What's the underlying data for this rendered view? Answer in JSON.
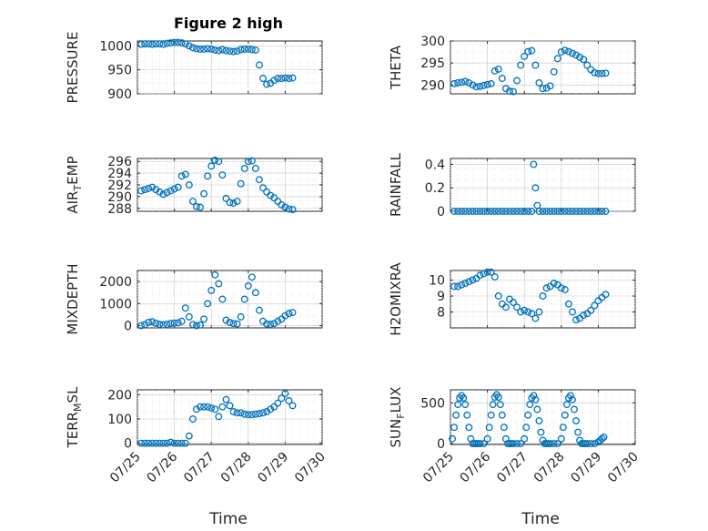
{
  "title": "Figure 2 high",
  "colors": {
    "marker": "#0072BD",
    "axis": "#262626"
  },
  "chart_data": [
    {
      "type": "scatter",
      "ylabel": "PRESSURE",
      "ylim": [
        900,
        1010
      ],
      "yticks": [
        900,
        950,
        1000
      ],
      "xlim": [
        0,
        5
      ],
      "grid": true,
      "x": [
        0.1,
        0.2,
        0.3,
        0.4,
        0.5,
        0.6,
        0.7,
        0.8,
        0.9,
        1.0,
        1.1,
        1.2,
        1.3,
        1.4,
        1.5,
        1.6,
        1.7,
        1.8,
        1.9,
        2.0,
        2.1,
        2.2,
        2.3,
        2.4,
        2.5,
        2.6,
        2.7,
        2.8,
        2.9,
        3.0,
        3.1,
        3.2,
        3.3,
        3.4,
        3.5,
        3.6,
        3.7,
        3.8,
        3.9,
        4.0,
        4.1,
        4.2
      ],
      "y": [
        1003,
        1004,
        1004,
        1003,
        1004,
        1004,
        1003,
        1005,
        1006,
        1007,
        1007,
        1006,
        1004,
        1000,
        996,
        994,
        993,
        993,
        994,
        993,
        991,
        990,
        992,
        990,
        989,
        988,
        989,
        992,
        993,
        993,
        992,
        991,
        960,
        932,
        920,
        922,
        928,
        932,
        932,
        933,
        932,
        933
      ]
    },
    {
      "type": "scatter",
      "ylabel": "THETA",
      "ylim": [
        288,
        300
      ],
      "yticks": [
        290,
        295,
        300
      ],
      "xlim": [
        0,
        5
      ],
      "grid": true,
      "x": [
        0.1,
        0.2,
        0.3,
        0.4,
        0.5,
        0.6,
        0.7,
        0.8,
        0.9,
        1.0,
        1.1,
        1.2,
        1.3,
        1.4,
        1.5,
        1.6,
        1.7,
        1.8,
        1.9,
        2.0,
        2.1,
        2.2,
        2.3,
        2.4,
        2.5,
        2.6,
        2.7,
        2.8,
        2.9,
        3.0,
        3.1,
        3.2,
        3.3,
        3.4,
        3.5,
        3.6,
        3.7,
        3.8,
        3.9,
        4.0,
        4.1,
        4.2
      ],
      "y": [
        290.3,
        290.5,
        290.6,
        290.8,
        290.5,
        290,
        289.6,
        289.7,
        289.9,
        290.1,
        290.3,
        293.2,
        293.6,
        291.5,
        289.2,
        288.6,
        288.5,
        291,
        294.5,
        296.5,
        297.6,
        297.8,
        294.5,
        290.5,
        289.2,
        289.3,
        289.8,
        293,
        296,
        297.5,
        297.9,
        297.6,
        297.2,
        296.8,
        296.3,
        295.8,
        294.5,
        293.5,
        292.8,
        292.6,
        292.6,
        292.7
      ]
    },
    {
      "type": "scatter",
      "ylabel": "AIR_TEMP",
      "ylim": [
        287.5,
        296.5
      ],
      "yticks": [
        288,
        290,
        292,
        294,
        296
      ],
      "xlim": [
        0,
        5
      ],
      "grid": true,
      "x": [
        0.1,
        0.2,
        0.3,
        0.4,
        0.5,
        0.6,
        0.7,
        0.8,
        0.9,
        1.0,
        1.1,
        1.2,
        1.3,
        1.4,
        1.5,
        1.6,
        1.7,
        1.8,
        1.9,
        2.0,
        2.1,
        2.2,
        2.3,
        2.4,
        2.5,
        2.6,
        2.7,
        2.8,
        2.9,
        3.0,
        3.1,
        3.2,
        3.3,
        3.4,
        3.5,
        3.6,
        3.7,
        3.8,
        3.9,
        4.0,
        4.1,
        4.2
      ],
      "y": [
        291,
        291.2,
        291.4,
        291.6,
        291.2,
        290.8,
        290.4,
        290.7,
        291,
        291.3,
        291.6,
        293.5,
        293.8,
        292,
        289.2,
        288.3,
        288.2,
        290.5,
        293.5,
        295.2,
        296.2,
        296,
        293.7,
        289.7,
        289,
        288.9,
        289.2,
        292.2,
        294.8,
        296,
        296.1,
        294.8,
        292.9,
        291.5,
        290.8,
        290.2,
        289.8,
        289.2,
        288.6,
        288.2,
        287.9,
        287.8
      ]
    },
    {
      "type": "scatter",
      "ylabel": "RAINFALL",
      "ylim": [
        0,
        0.45
      ],
      "yticks": [
        0,
        0.2,
        0.4
      ],
      "xlim": [
        0,
        5
      ],
      "grid": true,
      "x": [
        0.1,
        0.2,
        0.3,
        0.4,
        0.5,
        0.6,
        0.7,
        0.8,
        0.9,
        1.0,
        1.1,
        1.2,
        1.3,
        1.4,
        1.5,
        1.6,
        1.7,
        1.8,
        1.9,
        2.0,
        2.1,
        2.2,
        2.25,
        2.3,
        2.35,
        2.4,
        2.5,
        2.6,
        2.7,
        2.8,
        2.9,
        3.0,
        3.1,
        3.2,
        3.3,
        3.4,
        3.5,
        3.6,
        3.7,
        3.8,
        3.9,
        4.0,
        4.1,
        4.2
      ],
      "y": [
        0,
        0,
        0,
        0,
        0,
        0,
        0,
        0,
        0,
        0,
        0,
        0,
        0,
        0,
        0,
        0,
        0,
        0,
        0,
        0,
        0,
        0,
        0.4,
        0.2,
        0.05,
        0,
        0,
        0,
        0,
        0,
        0,
        0,
        0,
        0,
        0,
        0,
        0,
        0,
        0,
        0,
        0,
        0,
        0,
        0
      ]
    },
    {
      "type": "scatter",
      "ylabel": "MIXDEPTH",
      "ylim": [
        -100,
        2500
      ],
      "yticks": [
        0,
        1000,
        2000
      ],
      "xlim": [
        0,
        5
      ],
      "grid": true,
      "x": [
        0.1,
        0.2,
        0.3,
        0.4,
        0.5,
        0.6,
        0.7,
        0.8,
        0.9,
        1.0,
        1.1,
        1.2,
        1.3,
        1.4,
        1.5,
        1.6,
        1.7,
        1.8,
        1.9,
        2.0,
        2.1,
        2.2,
        2.3,
        2.4,
        2.5,
        2.6,
        2.7,
        2.8,
        2.9,
        3.0,
        3.1,
        3.2,
        3.3,
        3.4,
        3.5,
        3.6,
        3.7,
        3.8,
        3.9,
        4.0,
        4.1,
        4.2
      ],
      "y": [
        0,
        50,
        150,
        180,
        110,
        60,
        40,
        60,
        100,
        120,
        130,
        200,
        800,
        400,
        50,
        0,
        30,
        300,
        1000,
        1600,
        2300,
        1900,
        1200,
        250,
        150,
        100,
        80,
        400,
        1200,
        1800,
        2200,
        1500,
        700,
        200,
        80,
        60,
        100,
        200,
        300,
        450,
        550,
        600
      ]
    },
    {
      "type": "scatter",
      "ylabel": "H2OMIXRA",
      "ylim": [
        7,
        10.6
      ],
      "yticks": [
        8,
        9,
        10
      ],
      "xlim": [
        0,
        5
      ],
      "grid": true,
      "x": [
        0.1,
        0.2,
        0.3,
        0.4,
        0.5,
        0.6,
        0.7,
        0.8,
        0.9,
        1.0,
        1.1,
        1.2,
        1.3,
        1.4,
        1.5,
        1.6,
        1.7,
        1.8,
        1.9,
        2.0,
        2.1,
        2.2,
        2.3,
        2.4,
        2.5,
        2.6,
        2.7,
        2.8,
        2.9,
        3.0,
        3.1,
        3.2,
        3.3,
        3.4,
        3.5,
        3.6,
        3.7,
        3.8,
        3.9,
        4.0,
        4.1,
        4.2
      ],
      "y": [
        9.6,
        9.6,
        9.7,
        9.8,
        9.9,
        10,
        10.1,
        10.3,
        10.4,
        10.5,
        10.5,
        10.2,
        9,
        8.5,
        8.3,
        8.8,
        8.6,
        8.3,
        8.0,
        8.1,
        8.0,
        7.9,
        7.6,
        8.0,
        9.0,
        9.5,
        9.6,
        9.8,
        9.7,
        9.5,
        9.4,
        8.5,
        8,
        7.5,
        7.6,
        7.8,
        7.9,
        8.1,
        8.4,
        8.7,
        8.9,
        9.1
      ]
    },
    {
      "type": "scatter",
      "ylabel": "TERR_MSL",
      "ylim": [
        -5,
        220
      ],
      "yticks": [
        0,
        100,
        200
      ],
      "xlim": [
        0,
        5
      ],
      "grid": true,
      "x": [
        0.1,
        0.2,
        0.3,
        0.4,
        0.5,
        0.6,
        0.7,
        0.8,
        0.9,
        1.0,
        1.1,
        1.2,
        1.3,
        1.4,
        1.5,
        1.6,
        1.7,
        1.8,
        1.9,
        2.0,
        2.1,
        2.2,
        2.3,
        2.4,
        2.5,
        2.6,
        2.7,
        2.8,
        2.9,
        3.0,
        3.1,
        3.2,
        3.3,
        3.4,
        3.5,
        3.6,
        3.7,
        3.8,
        3.9,
        4.0,
        4.1,
        4.2
      ],
      "y": [
        0,
        0,
        0,
        0,
        0,
        0,
        0,
        0,
        4,
        0,
        0,
        0,
        0,
        30,
        100,
        140,
        150,
        150,
        150,
        145,
        140,
        110,
        150,
        180,
        155,
        130,
        125,
        125,
        120,
        118,
        118,
        120,
        122,
        125,
        130,
        140,
        150,
        165,
        185,
        205,
        175,
        155
      ]
    },
    {
      "type": "scatter",
      "ylabel": "SUN_FLUX",
      "ylim": [
        -10,
        660
      ],
      "yticks": [
        0,
        500
      ],
      "xlim": [
        0,
        5
      ],
      "grid": true,
      "x": [
        0.05,
        0.1,
        0.15,
        0.2,
        0.25,
        0.3,
        0.35,
        0.4,
        0.45,
        0.5,
        0.55,
        0.6,
        0.65,
        0.7,
        0.75,
        0.8,
        0.9,
        1.0,
        1.05,
        1.1,
        1.15,
        1.2,
        1.25,
        1.3,
        1.35,
        1.4,
        1.45,
        1.5,
        1.55,
        1.6,
        1.65,
        1.7,
        1.8,
        1.9,
        2.0,
        2.05,
        2.1,
        2.15,
        2.2,
        2.25,
        2.3,
        2.35,
        2.4,
        2.45,
        2.5,
        2.55,
        2.6,
        2.65,
        2.7,
        2.8,
        2.9,
        3.0,
        3.05,
        3.1,
        3.15,
        3.2,
        3.25,
        3.3,
        3.35,
        3.4,
        3.45,
        3.5,
        3.55,
        3.6,
        3.65,
        3.7,
        3.8,
        3.9,
        4.0,
        4.05,
        4.1,
        4.15
      ],
      "y": [
        60,
        200,
        350,
        480,
        560,
        590,
        560,
        480,
        350,
        200,
        60,
        0,
        0,
        0,
        0,
        0,
        0,
        60,
        200,
        350,
        480,
        570,
        600,
        570,
        480,
        350,
        200,
        60,
        0,
        0,
        0,
        0,
        0,
        0,
        60,
        200,
        350,
        480,
        560,
        590,
        540,
        420,
        280,
        140,
        40,
        0,
        0,
        0,
        0,
        0,
        0,
        60,
        200,
        350,
        480,
        560,
        590,
        540,
        420,
        280,
        140,
        40,
        0,
        0,
        0,
        0,
        0,
        0,
        20,
        40,
        60,
        80
      ]
    }
  ],
  "x_tick_labels": [
    "07/25",
    "07/26",
    "07/27",
    "07/28",
    "07/29",
    "07/30"
  ],
  "x_label": "Time"
}
